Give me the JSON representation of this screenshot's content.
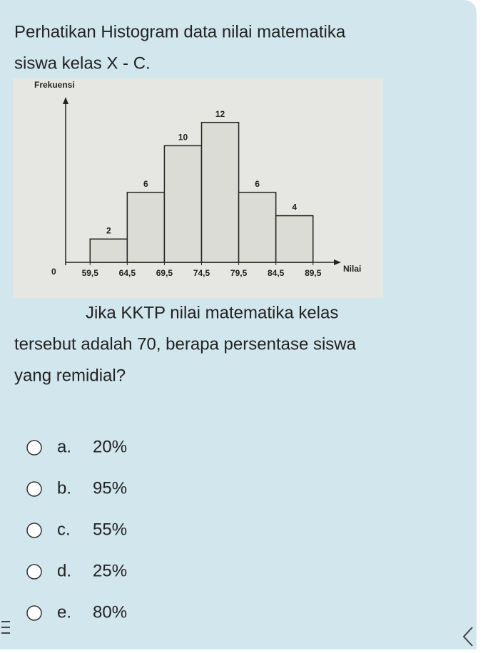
{
  "question": {
    "intro_lines": [
      "Perhatikan Histogram data nilai matematika",
      "siswa kelas X - C."
    ],
    "prompt_lines": [
      "Jika KKTP nilai matematika kelas",
      "tersebut adalah 70, berapa persentase siswa",
      "yang remidial?"
    ]
  },
  "histogram": {
    "type": "histogram",
    "y_label": "Frekuensi",
    "x_label": "Nilai",
    "x_origin_label": "0",
    "bins": [
      {
        "value": 59.5,
        "label": "59,5"
      },
      {
        "value": 64.5,
        "label": "64,5"
      },
      {
        "value": 69.5,
        "label": "69,5"
      },
      {
        "value": 74.5,
        "label": "74,5"
      },
      {
        "value": 79.5,
        "label": "79,5"
      },
      {
        "value": 84.5,
        "label": "84,5"
      },
      {
        "value": 89.5,
        "label": "89,5"
      }
    ],
    "values": [
      2,
      6,
      10,
      12,
      6,
      4
    ],
    "xlim": [
      56.5,
      92.5
    ],
    "ylim": [
      0,
      14
    ],
    "color": "#dcdcd6"
  },
  "options": [
    {
      "letter": "a.",
      "text": "20%"
    },
    {
      "letter": "b.",
      "text": "95%"
    },
    {
      "letter": "c.",
      "text": "55%"
    },
    {
      "letter": "d.",
      "text": "25%"
    },
    {
      "letter": "e.",
      "text": "80%"
    }
  ]
}
